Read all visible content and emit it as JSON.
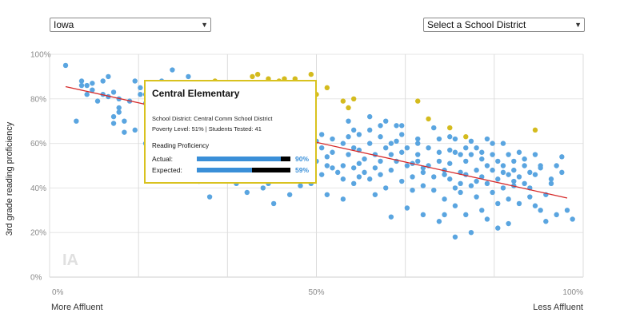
{
  "controls": {
    "state_value": "Iowa",
    "district_placeholder": "Select a School District"
  },
  "chart_data": {
    "type": "scatter",
    "xlabel_left": "More Affluent",
    "xlabel_right": "Less Affluent",
    "ylabel": "3rd grade reading proficiency",
    "watermark": "IA",
    "x_ticks": [
      "0%",
      "50%",
      "100%"
    ],
    "y_ticks": [
      "0%",
      "20%",
      "40%",
      "60%",
      "80%",
      "100%"
    ],
    "xlim": [
      0,
      100
    ],
    "ylim": [
      0,
      100
    ],
    "grid": true,
    "trendline": {
      "x": [
        3,
        97
      ],
      "y": [
        85.5,
        35.5
      ],
      "color": "#d62a2a"
    },
    "colors": {
      "normal": "#5aa5e0",
      "highlight": "#d4bb1e"
    },
    "points_normal": [
      [
        3,
        95
      ],
      [
        5,
        70
      ],
      [
        6,
        86
      ],
      [
        6,
        88
      ],
      [
        7,
        82
      ],
      [
        7,
        86
      ],
      [
        8,
        87
      ],
      [
        8,
        84
      ],
      [
        9,
        79
      ],
      [
        10,
        82
      ],
      [
        10,
        88
      ],
      [
        11,
        90
      ],
      [
        11,
        81
      ],
      [
        12,
        83
      ],
      [
        12,
        72
      ],
      [
        13,
        74
      ],
      [
        13,
        80
      ],
      [
        14,
        65
      ],
      [
        15,
        79
      ],
      [
        16,
        88
      ],
      [
        17,
        82
      ],
      [
        17,
        85
      ],
      [
        18,
        82
      ],
      [
        18,
        78
      ],
      [
        19,
        69
      ],
      [
        19,
        73
      ],
      [
        19,
        77
      ],
      [
        20,
        71
      ],
      [
        20,
        65
      ],
      [
        21,
        88
      ],
      [
        21,
        80
      ],
      [
        22,
        75
      ],
      [
        22,
        82
      ],
      [
        23,
        93
      ],
      [
        23,
        79
      ],
      [
        24,
        72
      ],
      [
        25,
        70
      ],
      [
        26,
        90
      ],
      [
        27,
        82
      ],
      [
        27,
        78
      ],
      [
        28,
        75
      ],
      [
        29,
        72
      ],
      [
        30,
        68
      ],
      [
        31,
        70
      ],
      [
        33,
        57
      ],
      [
        33,
        48
      ],
      [
        34,
        52
      ],
      [
        35,
        55
      ],
      [
        35,
        42
      ],
      [
        36,
        47
      ],
      [
        37,
        50
      ],
      [
        37,
        55
      ],
      [
        38,
        52
      ],
      [
        38,
        44
      ],
      [
        40,
        40
      ],
      [
        41,
        42
      ],
      [
        42,
        33
      ],
      [
        43,
        45
      ],
      [
        44,
        52
      ],
      [
        45,
        48
      ],
      [
        46,
        55
      ],
      [
        46,
        44
      ],
      [
        47,
        41
      ],
      [
        48,
        48
      ],
      [
        48,
        55
      ],
      [
        49,
        42
      ],
      [
        50,
        61
      ],
      [
        50,
        52
      ],
      [
        51,
        46
      ],
      [
        51,
        58
      ],
      [
        52,
        50
      ],
      [
        52,
        37
      ],
      [
        53,
        49
      ],
      [
        53,
        56
      ],
      [
        54,
        47
      ],
      [
        55,
        60
      ],
      [
        55,
        44
      ],
      [
        55,
        35
      ],
      [
        56,
        70
      ],
      [
        56,
        63
      ],
      [
        56,
        55
      ],
      [
        57,
        49
      ],
      [
        57,
        58
      ],
      [
        57,
        42
      ],
      [
        58,
        64
      ],
      [
        58,
        57
      ],
      [
        58,
        51
      ],
      [
        59,
        47
      ],
      [
        59,
        53
      ],
      [
        60,
        66
      ],
      [
        60,
        60
      ],
      [
        60,
        44
      ],
      [
        61,
        55
      ],
      [
        61,
        49
      ],
      [
        62,
        63
      ],
      [
        62,
        52
      ],
      [
        62,
        46
      ],
      [
        63,
        70
      ],
      [
        63,
        58
      ],
      [
        63,
        40
      ],
      [
        64,
        55
      ],
      [
        64,
        48
      ],
      [
        65,
        68
      ],
      [
        65,
        61
      ],
      [
        65,
        52
      ],
      [
        66,
        43
      ],
      [
        66,
        64
      ],
      [
        67,
        58
      ],
      [
        67,
        50
      ],
      [
        68,
        45
      ],
      [
        68,
        39
      ],
      [
        69,
        60
      ],
      [
        69,
        55
      ],
      [
        69,
        52
      ],
      [
        70,
        47
      ],
      [
        70,
        41
      ],
      [
        71,
        58
      ],
      [
        71,
        50
      ],
      [
        72,
        45
      ],
      [
        72,
        39
      ],
      [
        73,
        62
      ],
      [
        73,
        56
      ],
      [
        73,
        52
      ],
      [
        74,
        48
      ],
      [
        74,
        35
      ],
      [
        74,
        28
      ],
      [
        75,
        57
      ],
      [
        75,
        51
      ],
      [
        75,
        44
      ],
      [
        76,
        62
      ],
      [
        76,
        56
      ],
      [
        76,
        40
      ],
      [
        76,
        32
      ],
      [
        77,
        55
      ],
      [
        77,
        47
      ],
      [
        77,
        38
      ],
      [
        78,
        52
      ],
      [
        78,
        46
      ],
      [
        78,
        28
      ],
      [
        79,
        61
      ],
      [
        79,
        55
      ],
      [
        79,
        41
      ],
      [
        80,
        58
      ],
      [
        80,
        48
      ],
      [
        80,
        36
      ],
      [
        81,
        53
      ],
      [
        81,
        45
      ],
      [
        81,
        30
      ],
      [
        82,
        62
      ],
      [
        82,
        50
      ],
      [
        82,
        42
      ],
      [
        83,
        55
      ],
      [
        83,
        48
      ],
      [
        83,
        38
      ],
      [
        84,
        52
      ],
      [
        84,
        44
      ],
      [
        84,
        33
      ],
      [
        85,
        60
      ],
      [
        85,
        50
      ],
      [
        85,
        40
      ],
      [
        86,
        55
      ],
      [
        86,
        46
      ],
      [
        86,
        35
      ],
      [
        87,
        48
      ],
      [
        87,
        41
      ],
      [
        88,
        56
      ],
      [
        88,
        45
      ],
      [
        88,
        33
      ],
      [
        89,
        50
      ],
      [
        89,
        42
      ],
      [
        90,
        47
      ],
      [
        90,
        40
      ],
      [
        91,
        55
      ],
      [
        91,
        46
      ],
      [
        92,
        50
      ],
      [
        93,
        37
      ],
      [
        94,
        44
      ],
      [
        95,
        50
      ],
      [
        96,
        47
      ],
      [
        97,
        30
      ],
      [
        95,
        28
      ],
      [
        93,
        25
      ],
      [
        91,
        32
      ],
      [
        86,
        24
      ],
      [
        84,
        22
      ],
      [
        82,
        26
      ],
      [
        79,
        20
      ],
      [
        76,
        18
      ],
      [
        73,
        25
      ],
      [
        70,
        28
      ],
      [
        67,
        31
      ],
      [
        64,
        27
      ],
      [
        61,
        37
      ],
      [
        58,
        45
      ],
      [
        55,
        50
      ],
      [
        53,
        62
      ],
      [
        51,
        64
      ],
      [
        49,
        59
      ],
      [
        47,
        62
      ],
      [
        44,
        60
      ],
      [
        42,
        58
      ],
      [
        39,
        54
      ],
      [
        33,
        48
      ],
      [
        29,
        58
      ],
      [
        26,
        63
      ],
      [
        24,
        68
      ],
      [
        22,
        60
      ],
      [
        20,
        56
      ],
      [
        18,
        60
      ],
      [
        16,
        66
      ],
      [
        14,
        70
      ],
      [
        13,
        76
      ],
      [
        12,
        69
      ],
      [
        30,
        36
      ],
      [
        28,
        43
      ],
      [
        35,
        48
      ],
      [
        37,
        38
      ],
      [
        45,
        37
      ],
      [
        52,
        54
      ],
      [
        57,
        66
      ],
      [
        60,
        72
      ],
      [
        66,
        68
      ],
      [
        69,
        62
      ],
      [
        72,
        67
      ],
      [
        75,
        63
      ],
      [
        78,
        58
      ],
      [
        81,
        56
      ],
      [
        83,
        60
      ],
      [
        87,
        52
      ],
      [
        89,
        53
      ],
      [
        92,
        49
      ],
      [
        94,
        42
      ],
      [
        96,
        54
      ],
      [
        98,
        26
      ],
      [
        62,
        68
      ],
      [
        64,
        60
      ],
      [
        66,
        56
      ],
      [
        68,
        51
      ],
      [
        70,
        49
      ],
      [
        74,
        46
      ],
      [
        77,
        42
      ],
      [
        80,
        43
      ],
      [
        85,
        47
      ],
      [
        87,
        43
      ],
      [
        90,
        36
      ],
      [
        92,
        30
      ]
    ],
    "points_highlight": [
      [
        38,
        90
      ],
      [
        39,
        91
      ],
      [
        41,
        89
      ],
      [
        43,
        88
      ],
      [
        44,
        89
      ],
      [
        46,
        89
      ],
      [
        49,
        91
      ],
      [
        50,
        82
      ],
      [
        52,
        85
      ],
      [
        55,
        79
      ],
      [
        56,
        76
      ],
      [
        57,
        80
      ],
      [
        69,
        79
      ],
      [
        71,
        71
      ],
      [
        75,
        67
      ],
      [
        78,
        63
      ],
      [
        91,
        66
      ],
      [
        36,
        86
      ],
      [
        33,
        87
      ],
      [
        31,
        88
      ]
    ]
  },
  "tooltip": {
    "title": "Central Elementary",
    "district": "School District: Central Comm School District",
    "stats": "Poverty Level: 51% | Students Tested: 41",
    "section_title": "Reading Proficiency",
    "actual_label": "Actual:",
    "actual_value": 0.9,
    "actual_text": "90%",
    "expected_label": "Expected:",
    "expected_value": 0.59,
    "expected_text": "59%"
  }
}
